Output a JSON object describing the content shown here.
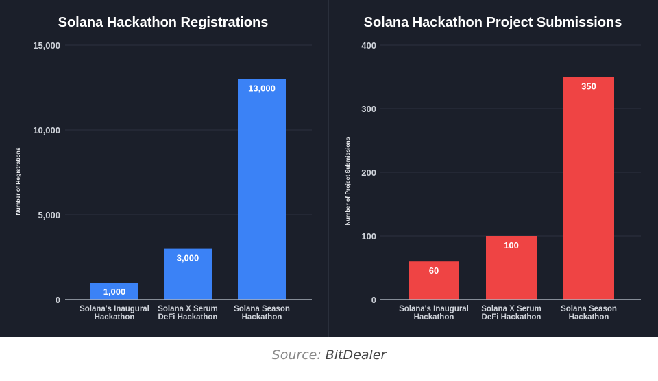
{
  "chart_data": [
    {
      "type": "bar",
      "title": "Solana Hackathon Registrations",
      "xlabel": "",
      "ylabel": "Number of Registrations",
      "categories": [
        [
          "Solana's Inaugural",
          "Hackathon"
        ],
        [
          "Solana X Serum",
          "DeFi Hackathon"
        ],
        [
          "Solana Season",
          "Hackathon"
        ]
      ],
      "values": [
        1000,
        3000,
        13000
      ],
      "data_labels": [
        "1,000",
        "3,000",
        "13,000"
      ],
      "ylim": [
        0,
        15000
      ],
      "yticks": [
        0,
        5000,
        10000,
        15000
      ],
      "ytick_labels": [
        "0",
        "5,000",
        "10,000",
        "15,000"
      ],
      "grid": true,
      "color": "#3b82f6"
    },
    {
      "type": "bar",
      "title": "Solana Hackathon Project Submissions",
      "xlabel": "",
      "ylabel": "Number of Project Submissions",
      "categories": [
        [
          "Solana's Inaugural",
          "Hackathon"
        ],
        [
          "Solana X Serum",
          "DeFi Hackathon"
        ],
        [
          "Solana Season",
          "Hackathon"
        ]
      ],
      "values": [
        60,
        100,
        350
      ],
      "data_labels": [
        "60",
        "100",
        "350"
      ],
      "ylim": [
        0,
        400
      ],
      "yticks": [
        0,
        100,
        200,
        300,
        400
      ],
      "ytick_labels": [
        "0",
        "100",
        "200",
        "300",
        "400"
      ],
      "grid": true,
      "color": "#ef4444"
    }
  ],
  "source": {
    "prefix": "Source: ",
    "link": "BitDealer"
  },
  "colors": {
    "background": "#1b1f2a"
  }
}
